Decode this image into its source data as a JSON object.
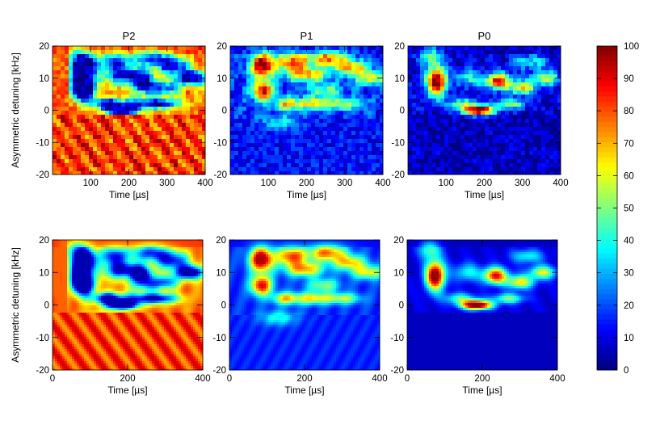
{
  "chart_data": [
    {
      "type": "heatmap",
      "title": "P2",
      "xlabel": "Time [µs]",
      "ylabel": "Asymmetric detuning [kHz]",
      "x_range": [
        0,
        400
      ],
      "y_range": [
        -20,
        20
      ],
      "xticks": [
        "100",
        "200",
        "300",
        "400"
      ],
      "yticks": [
        "20",
        "10",
        "0",
        "-10",
        "-20"
      ],
      "z_range": [
        0,
        100
      ],
      "quantity": "P2",
      "kind": "measured"
    },
    {
      "type": "heatmap",
      "title": "P1",
      "xlabel": "Time [µs]",
      "ylabel": "",
      "x_range": [
        0,
        400
      ],
      "y_range": [
        -20,
        20
      ],
      "xticks": [
        "100",
        "200",
        "300",
        "400"
      ],
      "yticks": [
        "20",
        "10",
        "0",
        "-10",
        "-20"
      ],
      "z_range": [
        0,
        100
      ],
      "quantity": "P1",
      "kind": "measured"
    },
    {
      "type": "heatmap",
      "title": "P0",
      "xlabel": "Time [µs]",
      "ylabel": "",
      "x_range": [
        0,
        400
      ],
      "y_range": [
        -20,
        20
      ],
      "xticks": [
        "100",
        "200",
        "300",
        "400"
      ],
      "yticks": [
        "20",
        "10",
        "0",
        "-10",
        "-20"
      ],
      "z_range": [
        0,
        100
      ],
      "quantity": "P0",
      "kind": "measured"
    },
    {
      "type": "heatmap",
      "title": "",
      "xlabel": "Time [µs]",
      "ylabel": "Asymmetric detuning [kHz]",
      "x_range": [
        0,
        400
      ],
      "y_range": [
        -20,
        20
      ],
      "xticks": [
        "0",
        "200",
        "400"
      ],
      "yticks": [
        "20",
        "10",
        "0",
        "-10",
        "-20"
      ],
      "z_range": [
        0,
        100
      ],
      "quantity": "P2",
      "kind": "simulated"
    },
    {
      "type": "heatmap",
      "title": "",
      "xlabel": "Time [µs]",
      "ylabel": "",
      "x_range": [
        0,
        400
      ],
      "y_range": [
        -20,
        20
      ],
      "xticks": [
        "0",
        "200",
        "400"
      ],
      "yticks": [
        "20",
        "10",
        "0",
        "-10",
        "-20"
      ],
      "z_range": [
        0,
        100
      ],
      "quantity": "P1",
      "kind": "simulated"
    },
    {
      "type": "heatmap",
      "title": "",
      "xlabel": "Time [µs]",
      "ylabel": "",
      "x_range": [
        0,
        400
      ],
      "y_range": [
        -20,
        20
      ],
      "xticks": [
        "0",
        "200",
        "400"
      ],
      "yticks": [
        "20",
        "10",
        "0",
        "-10",
        "-20"
      ],
      "z_range": [
        0,
        100
      ],
      "quantity": "P0",
      "kind": "simulated"
    }
  ],
  "colorbar": {
    "colormap": "jet",
    "range": [
      0,
      100
    ],
    "ticks": [
      "100",
      "90",
      "80",
      "70",
      "60",
      "50",
      "40",
      "30",
      "20",
      "10",
      "0"
    ]
  }
}
